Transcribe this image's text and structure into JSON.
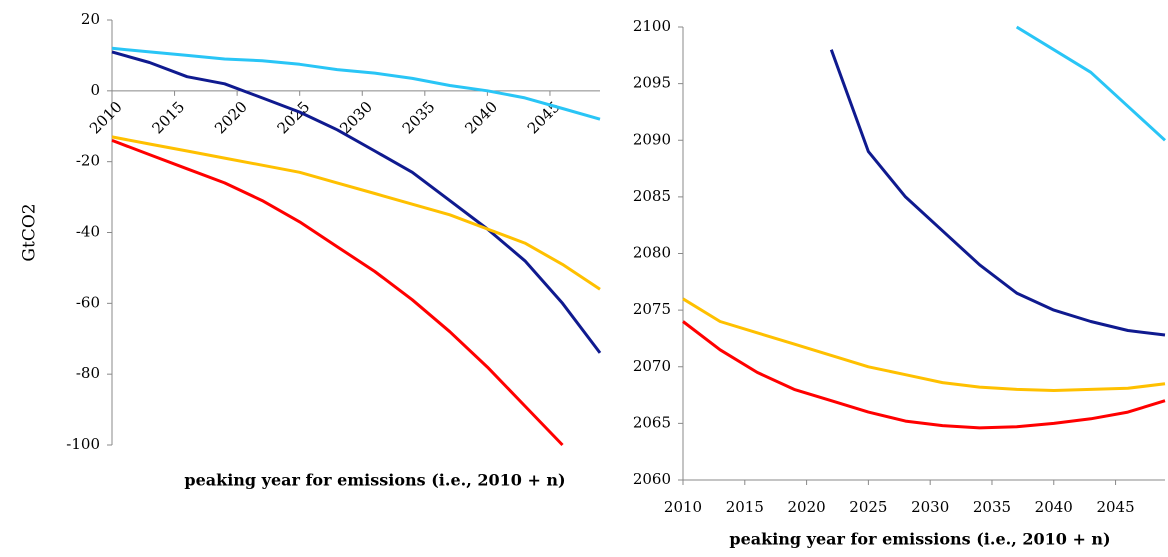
{
  "chart_data": [
    {
      "type": "line",
      "y_label": "GtCO2",
      "x_label": "peaking year for emissions (i.e., 2010 + n)",
      "x": [
        2010,
        2013,
        2016,
        2019,
        2022,
        2025,
        2028,
        2031,
        2034,
        2037,
        2040,
        2043,
        2046,
        2049
      ],
      "xlim": [
        2010,
        2049
      ],
      "xticks": [
        2010,
        2015,
        2020,
        2025,
        2030,
        2035,
        2040,
        2045
      ],
      "ylim": [
        -100,
        20
      ],
      "yticks": [
        -100,
        -80,
        -60,
        -40,
        -20,
        0,
        20
      ],
      "series": [
        {
          "color": "#29c5f6",
          "values": [
            12,
            11,
            10,
            9,
            8.5,
            7.5,
            6,
            5,
            3.5,
            1.5,
            0,
            -2,
            -5,
            -8
          ]
        },
        {
          "color": "#0f1a8f",
          "values": [
            11,
            8,
            4,
            2,
            -2,
            -6,
            -11,
            -17,
            -23,
            -31,
            -39,
            -48,
            -60,
            -74
          ]
        },
        {
          "color": "#ffc000",
          "values": [
            -13,
            -15,
            -17,
            -19,
            -21,
            -23,
            -26,
            -29,
            -32,
            -35,
            -39,
            -43,
            -49,
            -56
          ]
        },
        {
          "color": "#ff0000",
          "values": [
            -14,
            -18,
            -22,
            -26,
            -31,
            -37,
            -44,
            -51,
            -59,
            -68,
            -78,
            -89,
            -100,
            null
          ]
        }
      ]
    },
    {
      "type": "line",
      "x_label": "peaking year for emissions (i.e., 2010 + n)",
      "x": [
        2010,
        2013,
        2016,
        2019,
        2022,
        2025,
        2028,
        2031,
        2034,
        2037,
        2040,
        2043,
        2046,
        2049
      ],
      "xlim": [
        2010,
        2049
      ],
      "xticks": [
        2010,
        2015,
        2020,
        2025,
        2030,
        2035,
        2040,
        2045
      ],
      "ylim": [
        2060,
        2100
      ],
      "yticks": [
        2060,
        2065,
        2070,
        2075,
        2080,
        2085,
        2090,
        2095,
        2100
      ],
      "series": [
        {
          "color": "#29c5f6",
          "values": [
            null,
            null,
            null,
            null,
            null,
            null,
            null,
            null,
            null,
            2100,
            2098,
            2096,
            2093,
            2090
          ]
        },
        {
          "color": "#0f1a8f",
          "values": [
            null,
            null,
            null,
            null,
            2098,
            2089,
            2085,
            2082,
            2079,
            2076.5,
            2075,
            2074,
            2073.2,
            2072.8
          ]
        },
        {
          "color": "#ffc000",
          "values": [
            2076,
            2074,
            2073,
            2072,
            2071,
            2070,
            2069.3,
            2068.6,
            2068.2,
            2068,
            2067.9,
            2068,
            2068.1,
            2068.5
          ]
        },
        {
          "color": "#ff0000",
          "values": [
            2074,
            2071.5,
            2069.5,
            2068,
            2067,
            2066,
            2065.2,
            2064.8,
            2064.6,
            2064.7,
            2065,
            2065.4,
            2066,
            2067
          ]
        }
      ]
    }
  ]
}
